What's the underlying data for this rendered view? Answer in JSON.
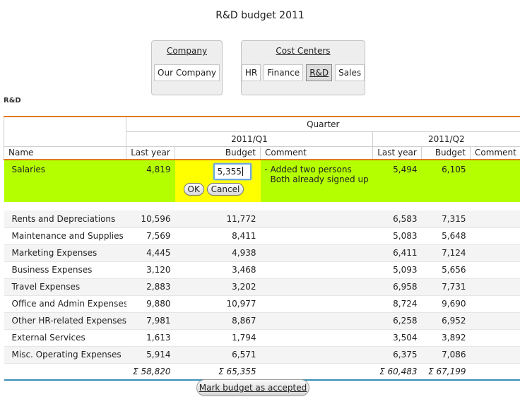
{
  "page": {
    "title": "R&D budget 2011"
  },
  "company": {
    "title": "Company",
    "options": [
      "Our Company"
    ],
    "selected": "Our Company"
  },
  "cost_centers": {
    "title": "Cost Centers",
    "options": [
      "HR",
      "Finance",
      "R&D",
      "Sales"
    ],
    "selected": "R&D"
  },
  "section_label": "R&D",
  "table": {
    "group_header": "Quarter",
    "periods": [
      "2011/Q1",
      "2011/Q2"
    ],
    "columns": [
      "Name",
      "Last year",
      "Budget",
      "Comment",
      "Last year",
      "Budget",
      "Comment"
    ],
    "editing_row": {
      "name": "Salaries",
      "q1_last": "4,819",
      "q1_budget_input": "5,355",
      "ok_label": "OK",
      "cancel_label": "Cancel",
      "comment_line1": "- Added two persons",
      "comment_line2": "Both already signed up",
      "q2_last": "5,494",
      "q2_budget": "6,105"
    },
    "rows": [
      {
        "name": "Rents and Depreciations",
        "q1_last": "10,596",
        "q1_budget": "11,772",
        "q2_last": "6,583",
        "q2_budget": "7,315"
      },
      {
        "name": "Maintenance and Supplies",
        "q1_last": "7,569",
        "q1_budget": "8,411",
        "q2_last": "5,083",
        "q2_budget": "5,648"
      },
      {
        "name": "Marketing Expenses",
        "q1_last": "4,445",
        "q1_budget": "4,938",
        "q2_last": "6,411",
        "q2_budget": "7,124"
      },
      {
        "name": "Business Expenses",
        "q1_last": "3,120",
        "q1_budget": "3,468",
        "q2_last": "5,093",
        "q2_budget": "5,656"
      },
      {
        "name": "Travel Expenses",
        "q1_last": "2,883",
        "q1_budget": "3,202",
        "q2_last": "6,958",
        "q2_budget": "7,731"
      },
      {
        "name": "Office and Admin Expenses",
        "q1_last": "9,880",
        "q1_budget": "10,977",
        "q2_last": "8,724",
        "q2_budget": "9,690"
      },
      {
        "name": "Other HR-related Expenses",
        "q1_last": "7,981",
        "q1_budget": "8,867",
        "q2_last": "6,258",
        "q2_budget": "6,952"
      },
      {
        "name": "External Services",
        "q1_last": "1,613",
        "q1_budget": "1,794",
        "q2_last": "3,504",
        "q2_budget": "3,892"
      },
      {
        "name": "Misc. Operating Expenses",
        "q1_last": "5,914",
        "q1_budget": "6,571",
        "q2_last": "6,375",
        "q2_budget": "7,086"
      }
    ],
    "totals": {
      "q1_last": "Σ 58,820",
      "q1_budget": "Σ 65,355",
      "q2_last": "Σ 60,483",
      "q2_budget": "Σ 67,199"
    }
  },
  "accept_button": "Mark budget as accepted",
  "colors": {
    "highlight_row": "#b4ff00",
    "edit_cell": "#ffff00",
    "header_rule": "#e07b1f",
    "footer_rule": "#3a8fb4"
  }
}
